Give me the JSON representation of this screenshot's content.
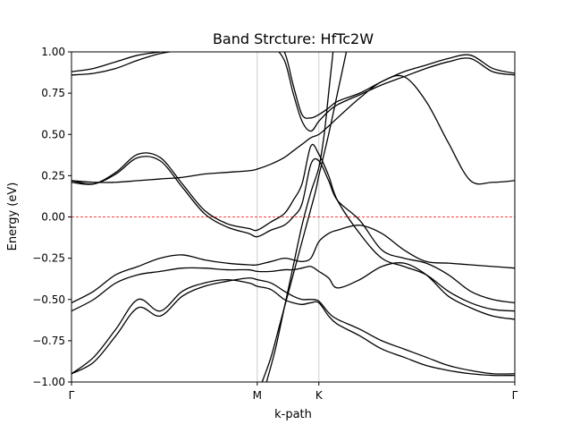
{
  "chart_data": {
    "type": "line",
    "title": "Band Strcture: HfTc2W",
    "xlabel": "k-path",
    "ylabel": "Energy (eV)",
    "ylim": [
      -1.0,
      1.0
    ],
    "xlim": [
      0,
      1
    ],
    "y_ticks": [
      -1.0,
      -0.75,
      -0.5,
      -0.25,
      0.0,
      0.25,
      0.5,
      0.75,
      1.0
    ],
    "y_tick_labels": [
      "−1.00",
      "−0.75",
      "−0.50",
      "−0.25",
      "0.00",
      "0.25",
      "0.50",
      "0.75",
      "1.00"
    ],
    "high_symmetry_points": [
      {
        "label": "Γ",
        "x": 0.0
      },
      {
        "label": "M",
        "x": 0.419
      },
      {
        "label": "K",
        "x": 0.558
      },
      {
        "label": "Γ",
        "x": 1.0
      }
    ],
    "fermi_level": 0.0,
    "series": [
      {
        "x": [
          0,
          0.05,
          0.1,
          0.15,
          0.2,
          0.25,
          0.3,
          0.35,
          0.4,
          0.419,
          0.45,
          0.48,
          0.5,
          0.52,
          0.54,
          0.558,
          0.58,
          0.6,
          0.65,
          0.7,
          0.75,
          0.8,
          0.85,
          0.9,
          0.95,
          1.0
        ],
        "values": [
          0.22,
          0.2,
          0.26,
          0.36,
          0.34,
          0.18,
          0.02,
          -0.06,
          -0.1,
          -0.12,
          -0.08,
          -0.05,
          0.0,
          0.08,
          0.32,
          0.34,
          0.22,
          0.1,
          -0.02,
          -0.2,
          -0.25,
          -0.28,
          -0.35,
          -0.45,
          -0.5,
          -0.52
        ]
      },
      {
        "x": [
          0,
          0.05,
          0.1,
          0.15,
          0.2,
          0.25,
          0.3,
          0.35,
          0.4,
          0.419,
          0.45,
          0.48,
          0.5,
          0.52,
          0.54,
          0.558,
          0.58,
          0.6,
          0.65,
          0.7,
          0.75,
          0.8,
          0.85,
          0.9,
          0.95,
          1.0
        ],
        "values": [
          0.21,
          0.2,
          0.27,
          0.38,
          0.36,
          0.2,
          0.04,
          -0.04,
          -0.07,
          -0.08,
          -0.03,
          0.02,
          0.1,
          0.2,
          0.43,
          0.38,
          0.25,
          0.1,
          -0.1,
          -0.25,
          -0.3,
          -0.35,
          -0.45,
          -0.52,
          -0.56,
          -0.57
        ]
      },
      {
        "x": [
          0,
          0.05,
          0.1,
          0.15,
          0.2,
          0.25,
          0.3,
          0.35,
          0.4,
          0.419,
          0.45,
          0.48,
          0.5,
          0.52,
          0.54,
          0.558,
          0.58,
          0.6,
          0.65,
          0.7,
          0.75,
          0.8,
          0.85,
          0.9,
          0.95,
          1.0
        ],
        "values": [
          0.22,
          0.21,
          0.21,
          0.22,
          0.23,
          0.24,
          0.26,
          0.27,
          0.28,
          0.29,
          0.32,
          0.36,
          0.4,
          0.44,
          0.48,
          0.5,
          0.55,
          0.6,
          0.72,
          0.82,
          0.85,
          0.7,
          0.45,
          0.22,
          0.21,
          0.22
        ]
      },
      {
        "x": [
          0,
          0.05,
          0.1,
          0.15,
          0.2,
          0.25,
          0.3,
          0.35,
          0.4,
          0.419,
          0.45,
          0.48,
          0.5,
          0.52,
          0.54,
          0.558,
          0.58,
          0.6,
          0.65,
          0.7,
          0.75,
          0.8,
          0.85,
          0.9,
          0.95,
          1.0
        ],
        "values": [
          -0.52,
          -0.45,
          -0.35,
          -0.3,
          -0.25,
          -0.23,
          -0.26,
          -0.28,
          -0.29,
          -0.29,
          -0.27,
          -0.25,
          -0.26,
          -0.27,
          -0.25,
          -0.15,
          -0.1,
          -0.08,
          -0.05,
          -0.1,
          -0.2,
          -0.27,
          -0.28,
          -0.29,
          -0.3,
          -0.31
        ]
      },
      {
        "x": [
          0,
          0.05,
          0.1,
          0.15,
          0.2,
          0.25,
          0.3,
          0.35,
          0.4,
          0.419,
          0.45,
          0.48,
          0.5,
          0.52,
          0.54,
          0.558,
          0.58,
          0.6,
          0.65,
          0.7,
          0.75,
          0.8,
          0.85,
          0.9,
          0.95,
          1.0
        ],
        "values": [
          -0.57,
          -0.5,
          -0.4,
          -0.35,
          -0.33,
          -0.31,
          -0.31,
          -0.32,
          -0.32,
          -0.33,
          -0.33,
          -0.32,
          -0.32,
          -0.31,
          -0.3,
          -0.33,
          -0.37,
          -0.43,
          -0.38,
          -0.3,
          -0.28,
          -0.35,
          -0.48,
          -0.55,
          -0.6,
          -0.62
        ]
      },
      {
        "x": [
          0,
          0.05,
          0.1,
          0.15,
          0.2,
          0.25,
          0.3,
          0.35,
          0.4,
          0.419,
          0.45,
          0.48,
          0.5,
          0.52,
          0.54,
          0.558,
          0.58,
          0.6,
          0.65,
          0.7,
          0.75,
          0.8,
          0.85,
          0.9,
          0.95,
          1.0
        ],
        "values": [
          -0.95,
          -0.85,
          -0.68,
          -0.5,
          -0.57,
          -0.45,
          -0.4,
          -0.38,
          -0.4,
          -0.42,
          -0.44,
          -0.5,
          -0.52,
          -0.53,
          -0.52,
          -0.52,
          -0.6,
          -0.65,
          -0.72,
          -0.8,
          -0.85,
          -0.9,
          -0.93,
          -0.95,
          -0.96,
          -0.96
        ]
      },
      {
        "x": [
          0,
          0.05,
          0.1,
          0.15,
          0.2,
          0.25,
          0.3,
          0.35,
          0.4,
          0.419,
          0.45,
          0.48,
          0.5,
          0.52,
          0.54,
          0.558,
          0.58,
          0.6,
          0.65,
          0.7,
          0.75,
          0.8,
          0.85,
          0.9,
          0.95,
          1.0
        ],
        "values": [
          -0.95,
          -0.88,
          -0.72,
          -0.55,
          -0.6,
          -0.48,
          -0.42,
          -0.39,
          -0.37,
          -0.38,
          -0.4,
          -0.45,
          -0.48,
          -0.5,
          -0.5,
          -0.51,
          -0.58,
          -0.62,
          -0.68,
          -0.75,
          -0.8,
          -0.85,
          -0.9,
          -0.93,
          -0.95,
          -0.95
        ]
      },
      {
        "x": [
          0,
          0.05,
          0.1,
          0.15,
          0.2,
          0.25,
          0.3,
          0.35,
          0.4,
          0.419,
          0.45,
          0.48,
          0.5,
          0.52,
          0.54,
          0.558,
          0.58,
          0.6,
          0.65,
          0.7,
          0.75,
          0.8,
          0.85,
          0.9,
          0.95,
          1.0
        ],
        "values": [
          0.88,
          0.9,
          0.94,
          0.98,
          1.0,
          1.02,
          1.04,
          1.06,
          1.07,
          1.08,
          1.05,
          1.0,
          0.8,
          0.62,
          0.6,
          0.62,
          0.66,
          0.7,
          0.75,
          0.82,
          0.88,
          0.92,
          0.96,
          0.98,
          0.9,
          0.87
        ]
      },
      {
        "x": [
          0,
          0.05,
          0.1,
          0.15,
          0.2,
          0.25,
          0.3,
          0.35,
          0.4,
          0.419,
          0.45,
          0.48,
          0.5,
          0.52,
          0.54,
          0.558,
          0.58,
          0.6,
          0.65,
          0.7,
          0.75,
          0.8,
          0.85,
          0.9,
          0.95,
          1.0
        ],
        "values": [
          0.86,
          0.87,
          0.9,
          0.95,
          0.99,
          1.01,
          1.03,
          1.05,
          1.06,
          1.06,
          1.04,
          0.95,
          0.75,
          0.58,
          0.52,
          0.58,
          0.64,
          0.68,
          0.74,
          0.8,
          0.85,
          0.9,
          0.94,
          0.96,
          0.88,
          0.86
        ]
      },
      {
        "x": [
          0.43,
          0.45,
          0.47,
          0.49,
          0.51,
          0.53,
          0.55,
          0.558,
          0.58,
          0.6,
          0.62
        ],
        "values": [
          -1.0,
          -0.85,
          -0.65,
          -0.45,
          -0.25,
          -0.05,
          0.15,
          0.25,
          0.5,
          0.75,
          1.0
        ]
      },
      {
        "x": [
          0.44,
          0.46,
          0.48,
          0.5,
          0.52,
          0.54,
          0.558,
          0.57,
          0.58,
          0.59
        ],
        "values": [
          -1.0,
          -0.8,
          -0.55,
          -0.3,
          -0.05,
          0.15,
          0.3,
          0.5,
          0.75,
          1.0
        ]
      }
    ]
  }
}
